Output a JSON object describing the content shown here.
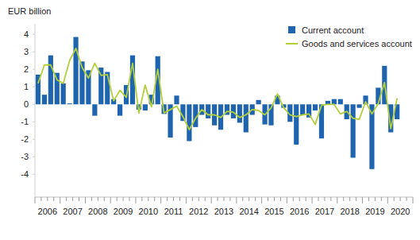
{
  "chart_data": {
    "type": "bar",
    "y_label": "EUR billion",
    "categories": [
      "2006",
      null,
      null,
      null,
      "2007",
      null,
      null,
      null,
      "2008",
      null,
      null,
      null,
      "2009",
      null,
      null,
      null,
      "2010",
      null,
      null,
      null,
      "2011",
      null,
      null,
      null,
      "2012",
      null,
      null,
      null,
      "2013",
      null,
      null,
      null,
      "2014",
      null,
      null,
      null,
      "2015",
      null,
      null,
      null,
      "2016",
      null,
      null,
      null,
      "2017",
      null,
      null,
      null,
      "2018",
      null,
      null,
      null,
      "2019",
      null,
      null,
      null,
      "2020",
      null
    ],
    "series": [
      {
        "name": "Current account",
        "type": "bar",
        "color": "#1f64ae",
        "values": [
          1.7,
          0.55,
          2.8,
          1.8,
          1.2,
          0.05,
          3.85,
          2.45,
          1.95,
          -0.65,
          2.1,
          1.85,
          0.3,
          -0.65,
          1.1,
          2.8,
          -0.3,
          -0.35,
          0.55,
          2.75,
          -0.55,
          -1.9,
          0.5,
          -0.95,
          -2.1,
          -1.3,
          -0.6,
          -0.8,
          -1.2,
          -1.45,
          -0.6,
          -0.8,
          -1.05,
          -1.6,
          -0.6,
          0.25,
          -1.15,
          -1.2,
          0.5,
          -0.2,
          -1.0,
          -2.3,
          -0.6,
          -0.75,
          -0.35,
          -1.95,
          0.2,
          0.3,
          0.3,
          -0.85,
          -3.05,
          -0.2,
          0.5,
          -3.7,
          0.95,
          2.2,
          -1.6,
          -0.85
        ]
      },
      {
        "name": "Goods and services account",
        "type": "line",
        "color": "#b2cf3a",
        "values": [
          1.2,
          2.25,
          2.25,
          1.4,
          1.2,
          2.5,
          3.2,
          2.1,
          1.5,
          2.35,
          1.65,
          1.7,
          0.2,
          0.8,
          0.4,
          2.35,
          -0.5,
          1.1,
          -0.15,
          2.0,
          -0.5,
          -0.3,
          -0.1,
          -0.7,
          -1.45,
          -0.8,
          -0.3,
          -0.6,
          -0.6,
          -0.75,
          -0.4,
          -0.45,
          -0.75,
          -0.6,
          -0.3,
          -0.35,
          -0.6,
          -0.2,
          0.6,
          -0.2,
          -0.6,
          -0.7,
          -0.6,
          -0.55,
          -1.15,
          -0.05,
          0.0,
          0.0,
          -0.55,
          -0.4,
          -0.8,
          -0.85,
          0.15,
          -0.55,
          0.05,
          1.25,
          -1.4,
          0.35
        ]
      }
    ],
    "ylim": [
      -5.3,
      4.6
    ],
    "yticks": [
      -4,
      -3,
      -2,
      -1,
      0,
      1,
      2,
      3,
      4
    ],
    "grid": false,
    "legend": "upper right"
  }
}
